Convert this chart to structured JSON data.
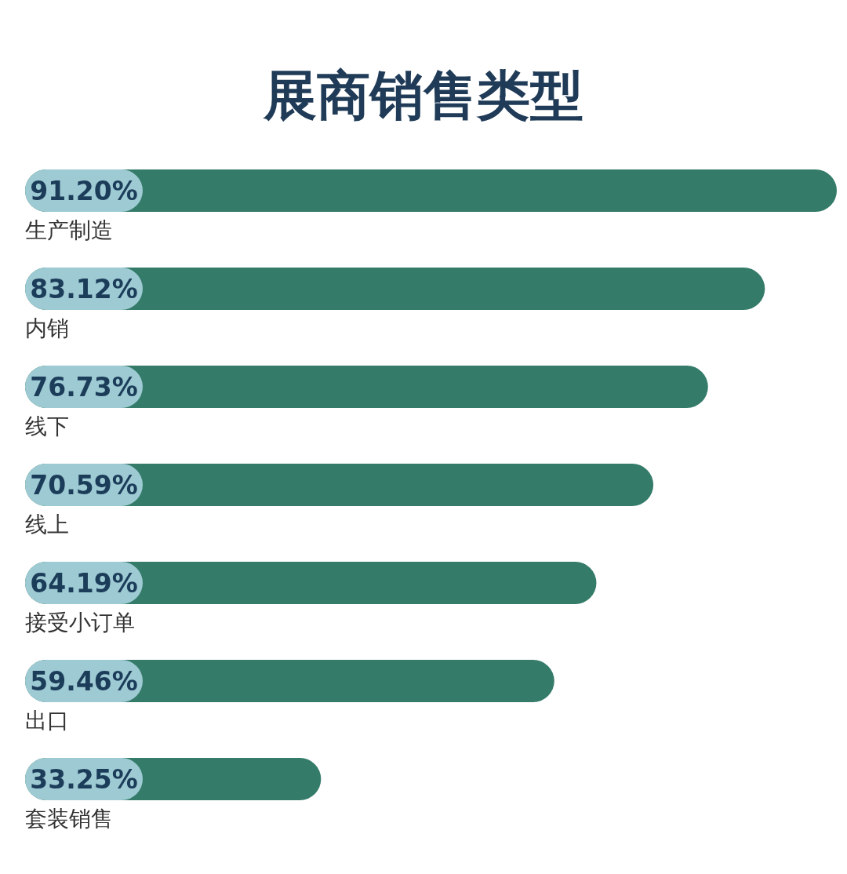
{
  "chart_data": {
    "type": "bar",
    "orientation": "horizontal",
    "title": "展商销售类型",
    "categories": [
      "生产制造",
      "内销",
      "线下",
      "线上",
      "接受小订单",
      "出口",
      "套装销售"
    ],
    "values": [
      91.2,
      83.12,
      76.73,
      70.59,
      64.19,
      59.46,
      33.25
    ],
    "value_labels": [
      "91.20%",
      "83.12%",
      "76.73%",
      "70.59%",
      "64.19%",
      "59.46%",
      "33.25%"
    ],
    "color": "#347b69"
  }
}
